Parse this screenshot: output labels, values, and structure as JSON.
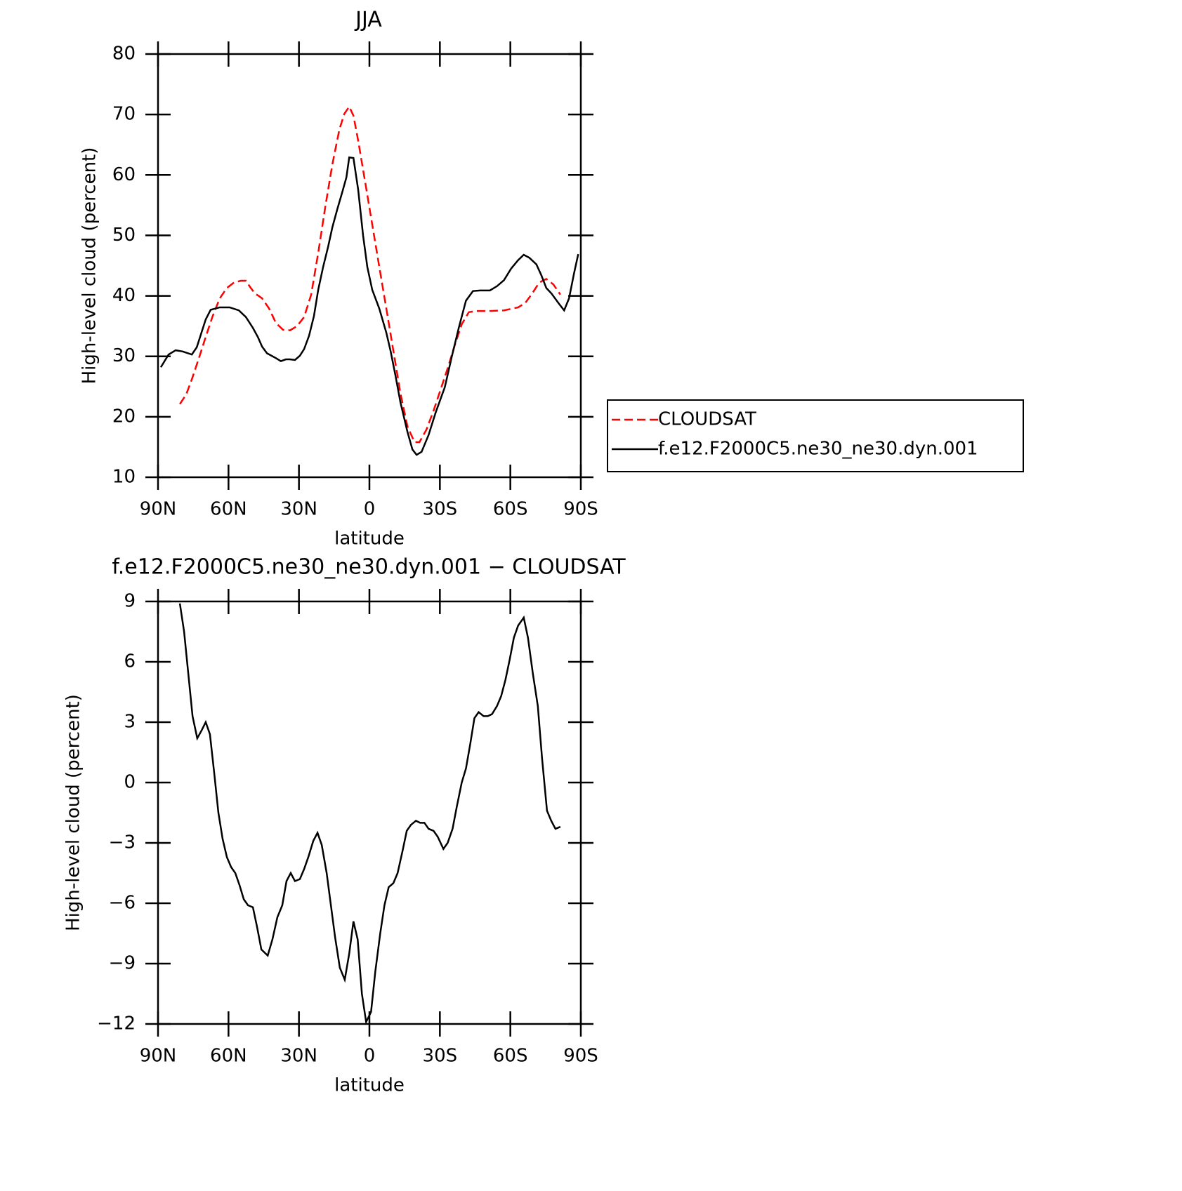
{
  "chart_data": [
    {
      "type": "line",
      "title": "JJA",
      "xlabel": "latitude",
      "ylabel": "High-level cloud (percent)",
      "xlim": [
        90,
        -90
      ],
      "xticks": [
        {
          "value": 90,
          "label": "90N"
        },
        {
          "value": 60,
          "label": "60N"
        },
        {
          "value": 30,
          "label": "30N"
        },
        0,
        {
          "value": -30,
          "label": "30S"
        },
        {
          "value": -60,
          "label": "60S"
        },
        {
          "value": -90,
          "label": "90S"
        }
      ],
      "ylim": [
        10,
        80
      ],
      "yticks": [
        10,
        20,
        30,
        40,
        50,
        60,
        70,
        80
      ],
      "legend": "right",
      "series": [
        {
          "name": "CLOUDSAT",
          "color": "#ff0000",
          "dash": true,
          "x": [
            80.7,
            78.0,
            75.6,
            72.6,
            69.7,
            66.7,
            63.7,
            60.7,
            57.7,
            54.7,
            52.6,
            50.5,
            48.7,
            45.7,
            42.7,
            39.8,
            36.8,
            33.8,
            30.8,
            27.8,
            24.8,
            21.8,
            18.8,
            15.8,
            12.8,
            10.7,
            8.6,
            6.8,
            4.8,
            1.8,
            -1.2,
            -4.2,
            -7.2,
            -10.2,
            -13.2,
            -16.2,
            -19.2,
            -21.3,
            -24.3,
            -27.3,
            -30.3,
            -33.3,
            -36.3,
            -39.3,
            -42.3,
            -45.3,
            -51.3,
            -57.3,
            -63.3,
            -66.3,
            -69.3,
            -72.3,
            -75.3,
            -78.3,
            -81.3
          ],
          "values": [
            22.1,
            23.7,
            26.2,
            29.7,
            33.2,
            36.7,
            39.6,
            41.3,
            42.2,
            42.5,
            42.5,
            41.3,
            40.4,
            39.6,
            37.9,
            35.5,
            34.4,
            34.3,
            35.0,
            36.5,
            40.2,
            47.1,
            54.7,
            61.7,
            67.5,
            70.1,
            71.3,
            69.8,
            65.7,
            58.8,
            51.8,
            44.8,
            37.9,
            30.9,
            23.9,
            18.4,
            15.8,
            15.8,
            17.9,
            21.0,
            24.5,
            28.0,
            31.8,
            35.3,
            37.3,
            37.5,
            37.5,
            37.6,
            38.1,
            38.8,
            40.4,
            42.2,
            42.8,
            41.9,
            40.2
          ]
        },
        {
          "name": "f.e12.F2000C5.ne30_ne30.dyn.001",
          "color": "#000000",
          "dash": false,
          "x": [
            88.8,
            85.5,
            82.5,
            79.5,
            75.6,
            73.5,
            69.7,
            67.6,
            63.7,
            59.5,
            55.6,
            52.6,
            49.6,
            47.5,
            45.7,
            43.6,
            39.8,
            37.7,
            35.6,
            33.8,
            31.7,
            29.6,
            27.8,
            25.7,
            23.6,
            21.8,
            19.7,
            17.6,
            15.8,
            13.7,
            11.6,
            9.8,
            8.6,
            6.8,
            4.8,
            2.7,
            0.9,
            -1.2,
            -4.2,
            -7.2,
            -9.0,
            -11.1,
            -13.2,
            -16.2,
            -18.3,
            -20.1,
            -22.2,
            -25.2,
            -28.2,
            -32.1,
            -35.1,
            -38.1,
            -41.1,
            -44.1,
            -47.1,
            -51.3,
            -54.3,
            -57.3,
            -60.3,
            -63.3,
            -65.7,
            -68.1,
            -71.1,
            -73.2,
            -75.3,
            -77.5,
            -80.5,
            -82.9,
            -85.0,
            -87.1,
            -88.9
          ],
          "values": [
            28.2,
            30.3,
            31.0,
            30.8,
            30.3,
            31.5,
            36.1,
            37.7,
            38.1,
            38.1,
            37.6,
            36.5,
            34.7,
            33.2,
            31.6,
            30.5,
            29.7,
            29.2,
            29.5,
            29.5,
            29.4,
            30.1,
            31.2,
            33.4,
            36.7,
            41.0,
            44.8,
            48.1,
            51.3,
            54.3,
            57.1,
            59.6,
            62.9,
            62.8,
            57.6,
            50.0,
            44.8,
            41.0,
            37.9,
            33.9,
            30.9,
            26.8,
            22.4,
            17.5,
            14.6,
            13.7,
            14.2,
            17.0,
            20.7,
            24.9,
            30.0,
            34.8,
            39.2,
            40.8,
            40.9,
            40.9,
            41.6,
            42.6,
            44.5,
            45.9,
            46.8,
            46.3,
            45.2,
            43.4,
            41.3,
            40.4,
            38.8,
            37.6,
            39.6,
            43.7,
            46.9
          ]
        }
      ]
    },
    {
      "type": "line",
      "title": "f.e12.F2000C5.ne30_ne30.dyn.001 − CLOUDSAT",
      "xlabel": "latitude",
      "ylabel": "High-level cloud (percent)",
      "xlim": [
        90,
        -90
      ],
      "xticks": [
        {
          "value": 90,
          "label": "90N"
        },
        {
          "value": 60,
          "label": "60N"
        },
        {
          "value": 30,
          "label": "30N"
        },
        0,
        {
          "value": -30,
          "label": "30S"
        },
        {
          "value": -60,
          "label": "60S"
        },
        {
          "value": -90,
          "label": "90S"
        }
      ],
      "ylim": [
        -12,
        9
      ],
      "yticks": [
        {
          "value": -12,
          "label": "−12"
        },
        {
          "value": -9,
          "label": "−9"
        },
        {
          "value": -6,
          "label": "−6"
        },
        {
          "value": -3,
          "label": "−3"
        },
        0,
        3,
        6,
        9
      ],
      "series": [
        {
          "color": "#000000",
          "dash": false,
          "x": [
            80.7,
            78.9,
            77.1,
            75.3,
            73.3,
            71.4,
            69.7,
            67.9,
            66.1,
            64.3,
            62.5,
            60.7,
            58.9,
            57.1,
            55.3,
            53.5,
            51.7,
            49.6,
            47.8,
            46.0,
            43.3,
            41.3,
            39.2,
            37.1,
            35.3,
            33.5,
            31.7,
            29.6,
            27.8,
            26.0,
            23.9,
            22.1,
            20.3,
            18.2,
            16.4,
            14.6,
            12.6,
            10.5,
            8.6,
            6.8,
            5.0,
            3.2,
            1.4,
            -0.7,
            -2.5,
            -4.6,
            -6.4,
            -8.2,
            -10.2,
            -12.0,
            -14.1,
            -15.9,
            -17.7,
            -19.8,
            -21.6,
            -23.4,
            -25.2,
            -27.3,
            -29.1,
            -31.5,
            -33.3,
            -35.4,
            -37.2,
            -39.3,
            -41.1,
            -42.9,
            -44.7,
            -46.5,
            -48.6,
            -50.4,
            -52.2,
            -54.3,
            -56.1,
            -57.9,
            -59.7,
            -61.5,
            -63.3,
            -65.7,
            -67.5,
            -69.6,
            -71.7,
            -73.5,
            -75.6,
            -77.4,
            -79.2,
            -81.3
          ],
          "values": [
            8.9,
            7.5,
            5.4,
            3.3,
            2.2,
            2.6,
            3.0,
            2.4,
            0.5,
            -1.5,
            -2.8,
            -3.7,
            -4.2,
            -4.5,
            -5.1,
            -5.8,
            -6.1,
            -6.2,
            -7.2,
            -8.3,
            -8.6,
            -7.8,
            -6.7,
            -6.1,
            -4.9,
            -4.5,
            -4.9,
            -4.8,
            -4.3,
            -3.7,
            -2.9,
            -2.5,
            -3.1,
            -4.5,
            -6.1,
            -7.7,
            -9.2,
            -9.8,
            -8.5,
            -6.9,
            -7.8,
            -10.5,
            -11.9,
            -11.4,
            -9.4,
            -7.5,
            -6.1,
            -5.2,
            -5.0,
            -4.5,
            -3.4,
            -2.4,
            -2.1,
            -1.9,
            -2.0,
            -2.0,
            -2.3,
            -2.4,
            -2.7,
            -3.3,
            -3.0,
            -2.3,
            -1.2,
            0.0,
            0.7,
            1.9,
            3.2,
            3.5,
            3.3,
            3.3,
            3.4,
            3.8,
            4.3,
            5.1,
            6.1,
            7.2,
            7.8,
            8.2,
            7.2,
            5.4,
            3.8,
            1.2,
            -1.4,
            -1.9,
            -2.3,
            -2.2
          ]
        }
      ]
    }
  ]
}
